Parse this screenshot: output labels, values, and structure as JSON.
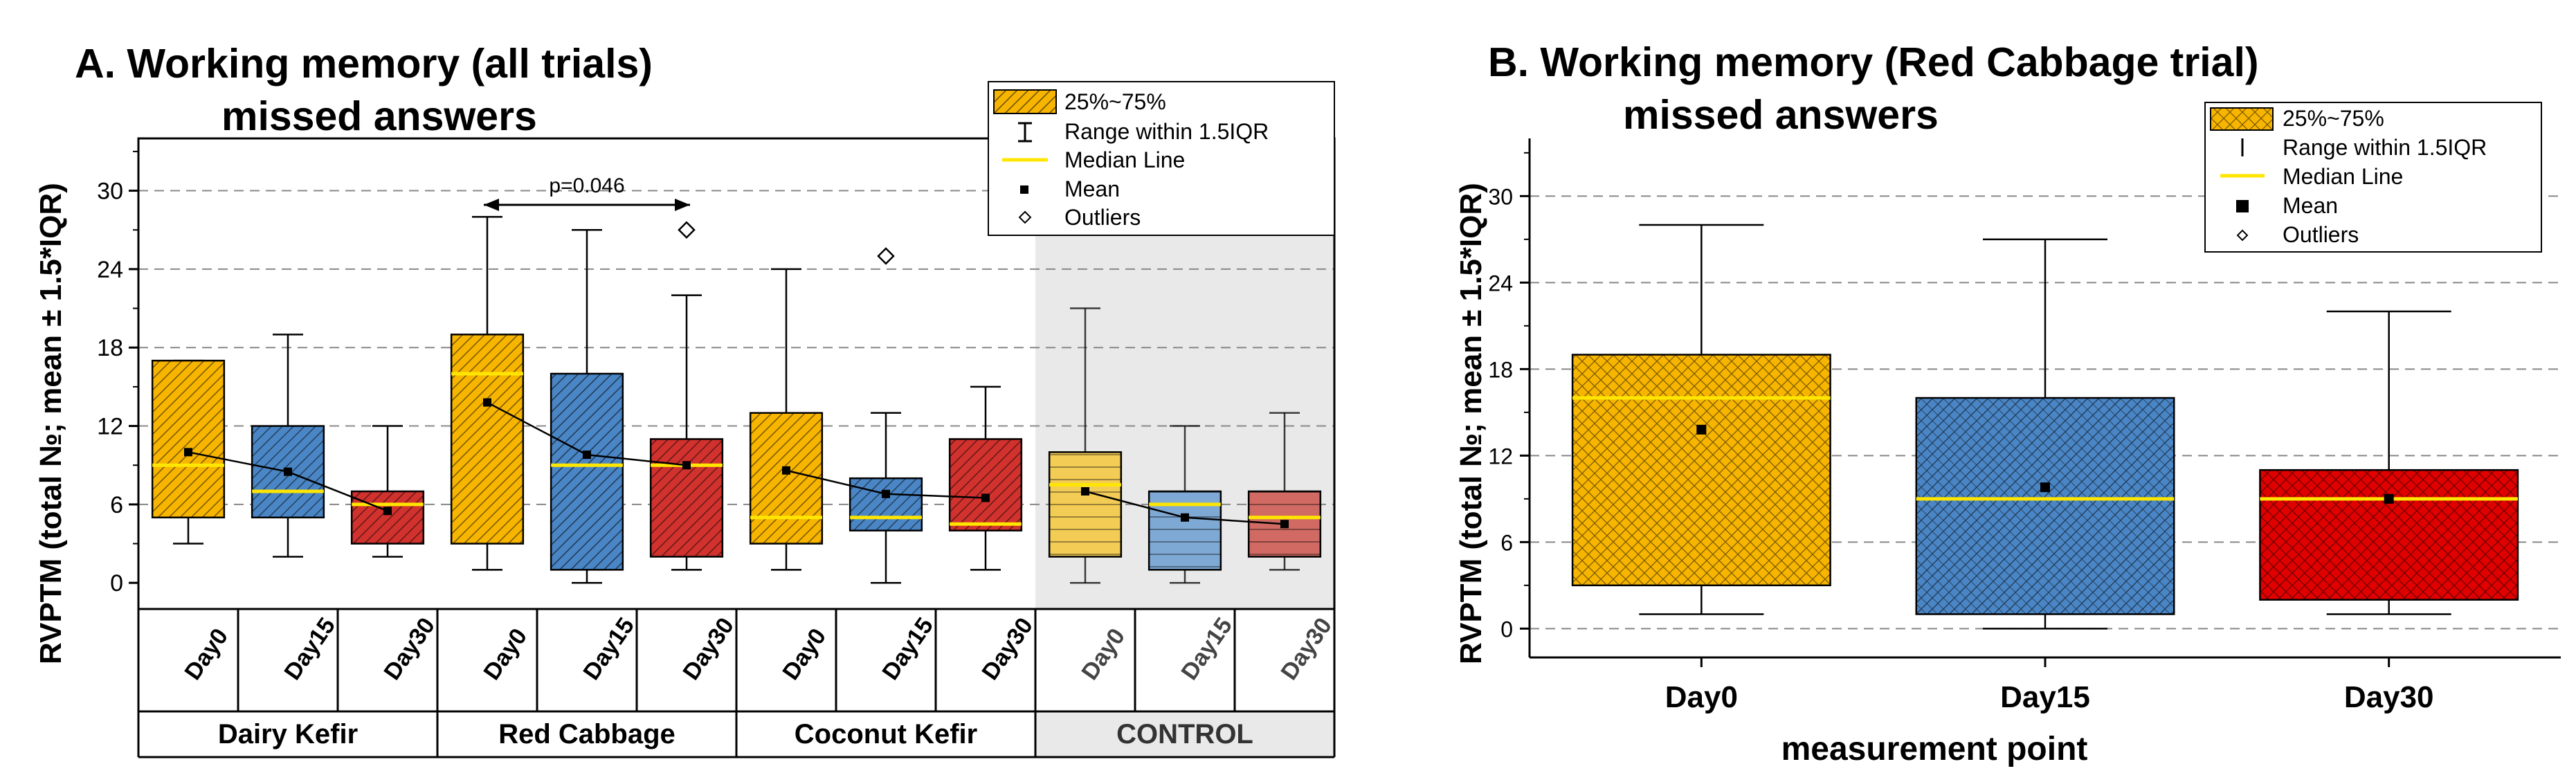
{
  "chart_data": [
    {
      "type": "box",
      "title_line1": "A. Working memory (all trials)",
      "title_line2": "missed answers",
      "ylabel": "RVPTM (total №; mean ± 1.5*IQR)",
      "ylim": [
        -2,
        34
      ],
      "yticks": [
        0,
        6,
        12,
        18,
        24,
        30
      ],
      "grid": "dashed horizontal",
      "groups": [
        {
          "name": "Dairy Kefir",
          "shaded": false,
          "color": "#f7b500",
          "hatch": "diag",
          "boxes": [
            {
              "day": "Day0",
              "min": 3,
              "q1": 5,
              "median": 9,
              "q3": 17,
              "max": 17,
              "mean": 10
            },
            {
              "day": "Day15",
              "min": 2,
              "q1": 5,
              "median": 7,
              "q3": 12,
              "max": 19,
              "mean": 8.5
            },
            {
              "day": "Day30",
              "min": 2,
              "q1": 3,
              "median": 6,
              "q3": 7,
              "max": 12,
              "mean": 5.5
            }
          ],
          "colors": [
            "#f7b500",
            "#4a86c5",
            "#d1322e"
          ]
        },
        {
          "name": "Red Cabbage",
          "shaded": false,
          "boxes": [
            {
              "day": "Day0",
              "min": 1,
              "q1": 3,
              "median": 16,
              "q3": 19,
              "max": 28,
              "mean": 13.8
            },
            {
              "day": "Day15",
              "min": 0,
              "q1": 1,
              "median": 9,
              "q3": 16,
              "max": 27,
              "mean": 9.8
            },
            {
              "day": "Day30",
              "min": 1,
              "q1": 2,
              "median": 9,
              "q3": 11,
              "max": 22,
              "mean": 9,
              "outliers": [
                27
              ]
            }
          ],
          "colors": [
            "#f7b500",
            "#4a86c5",
            "#d1322e"
          ]
        },
        {
          "name": "Coconut Kefir",
          "shaded": false,
          "boxes": [
            {
              "day": "Day0",
              "min": 1,
              "q1": 3,
              "median": 5,
              "q3": 13,
              "max": 24,
              "mean": 8.6
            },
            {
              "day": "Day15",
              "min": 0,
              "q1": 4,
              "median": 5,
              "q3": 8,
              "max": 13,
              "mean": 6.8,
              "outliers": [
                25
              ]
            },
            {
              "day": "Day30",
              "min": 1,
              "q1": 4,
              "median": 4.5,
              "q3": 11,
              "max": 15,
              "mean": 6.5
            }
          ],
          "colors": [
            "#f7b500",
            "#4a86c5",
            "#d1322e"
          ]
        },
        {
          "name": "CONTROL",
          "shaded": true,
          "boxes": [
            {
              "day": "Day0",
              "min": 0,
              "q1": 2,
              "median": 7.5,
              "q3": 10,
              "max": 21,
              "mean": 7
            },
            {
              "day": "Day15",
              "min": 0,
              "q1": 1,
              "median": 6,
              "q3": 7,
              "max": 12,
              "mean": 5
            },
            {
              "day": "Day30",
              "min": 1,
              "q1": 2,
              "median": 5,
              "q3": 7,
              "max": 13,
              "mean": 4.5
            }
          ],
          "colors": [
            "#f3cc55",
            "#7ea9d4",
            "#d06a63"
          ]
        }
      ],
      "annotation": {
        "text": "p=0.046",
        "from_group": 1,
        "from_box": 0,
        "to_box": 2
      },
      "legend": {
        "position": "top-right",
        "items": [
          "25%~75%",
          "Range within 1.5IQR",
          "Median Line",
          "Mean",
          "Outliers"
        ]
      }
    },
    {
      "type": "box",
      "title_line1": "B. Working memory (Red Cabbage trial)",
      "title_line2": "missed answers",
      "ylabel": "RVPTM (total №; mean ± 1.5*IQR)",
      "xlabel": "measurement point",
      "ylim": [
        -2,
        34
      ],
      "yticks": [
        0,
        6,
        12,
        18,
        24,
        30
      ],
      "grid": "dashed horizontal",
      "categories": [
        "Day0",
        "Day15",
        "Day30"
      ],
      "boxes": [
        {
          "min": 1,
          "q1": 3,
          "median": 16,
          "q3": 19,
          "max": 28,
          "mean": 13.8
        },
        {
          "min": 0,
          "q1": 1,
          "median": 9,
          "q3": 16,
          "max": 27,
          "mean": 9.8
        },
        {
          "min": 1,
          "q1": 2,
          "median": 9,
          "q3": 11,
          "max": 22,
          "mean": 9
        }
      ],
      "colors": [
        "#f7b500",
        "#4a86c5",
        "#e00000"
      ],
      "legend": {
        "position": "top-right",
        "items": [
          "25%~75%",
          "Range within 1.5IQR",
          "Median Line",
          "Mean",
          "Outliers"
        ]
      }
    }
  ]
}
